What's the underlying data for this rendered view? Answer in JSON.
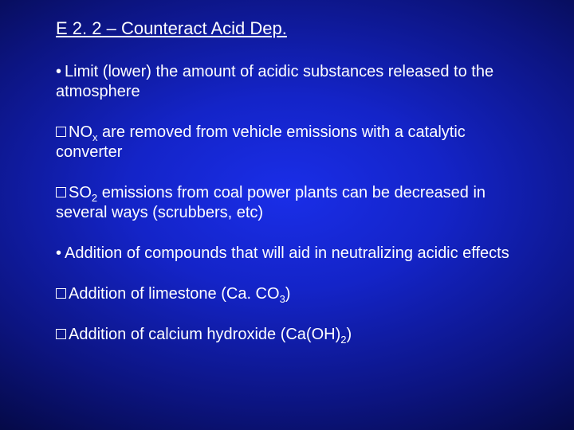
{
  "slide": {
    "title": "E 2. 2 – Counteract Acid Dep.",
    "background": {
      "gradient_center": "#1a2ee8",
      "gradient_mid": "#0c1480",
      "gradient_edge": "#000010"
    },
    "text_color": "#ffffff",
    "font_family": "Arial",
    "title_fontsize": 22,
    "body_fontsize": 20,
    "bullets": [
      {
        "marker": "dot",
        "text_html": "Limit (lower) the amount of acidic substances released to the atmosphere"
      },
      {
        "marker": "square",
        "text_html": "NO<sub>x</sub> are removed from vehicle emissions with a catalytic converter"
      },
      {
        "marker": "square",
        "text_html": "SO<sub>2</sub> emissions from coal power plants can be decreased in several ways (scrubbers, etc)"
      },
      {
        "marker": "dot",
        "text_html": "Addition of compounds that will aid in neutralizing acidic effects"
      },
      {
        "marker": "square",
        "text_html": "Addition of limestone (Ca. CO<sub>3</sub>)"
      },
      {
        "marker": "square",
        "text_html": "Addition of calcium hydroxide (Ca(OH)<sub>2</sub>)"
      }
    ]
  }
}
